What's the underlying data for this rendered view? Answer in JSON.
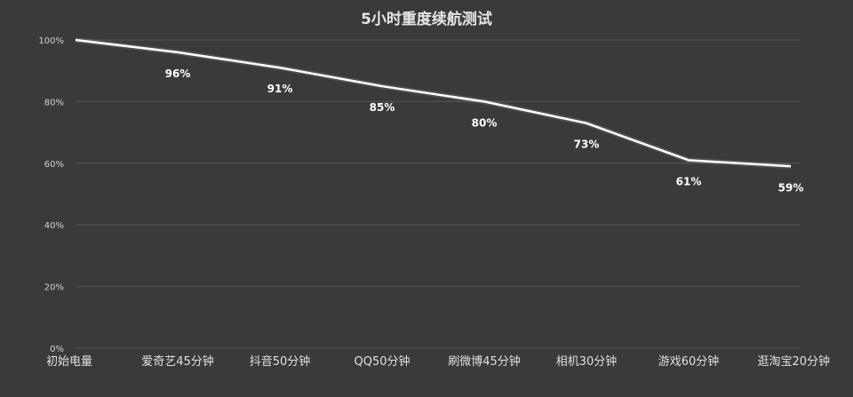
{
  "chart_data": {
    "type": "line",
    "title": "5小时重度续航测试",
    "categories": [
      "初始电量",
      "爱奇艺45分钟",
      "抖音50分钟",
      "QQ50分钟",
      "刷微博45分钟",
      "相机30分钟",
      "游戏60分钟",
      "逛淘宝20分钟"
    ],
    "series": [
      {
        "values": [
          100,
          96,
          91,
          85,
          80,
          73,
          61,
          59
        ]
      }
    ],
    "data_labels": [
      "",
      "96%",
      "91%",
      "85%",
      "80%",
      "73%",
      "61%",
      "59%"
    ],
    "ytick_labels": [
      "0%",
      "20%",
      "40%",
      "60%",
      "80%",
      "100%"
    ],
    "yticks": [
      0,
      20,
      40,
      60,
      80,
      100
    ],
    "ylim": [
      0,
      100
    ],
    "grid": true,
    "legend": "none",
    "colors": {
      "background": "#3a3a3a",
      "line": "#ffffff",
      "grid": "#575757"
    }
  }
}
